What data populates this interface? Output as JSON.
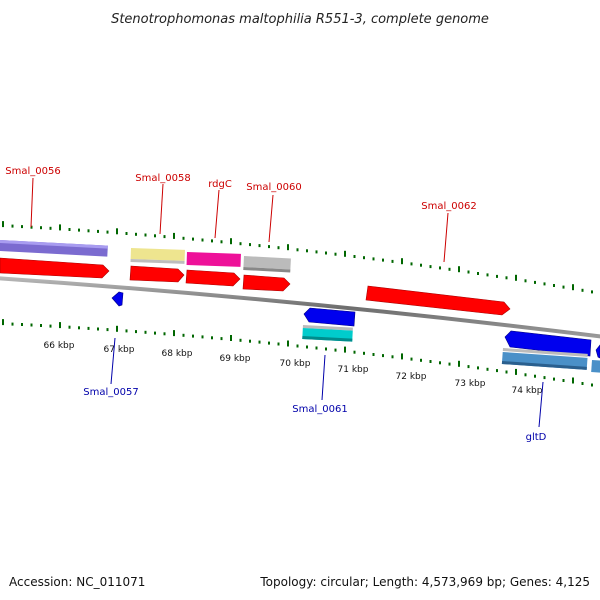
{
  "title": "Stenotrophomonas maltophilia R551-3, complete genome",
  "footer": {
    "accession": "Accession: NC_011071",
    "summary": "Topology: circular; Length: 4,573,969 bp; Genes: 4,125"
  },
  "axis_ticks": [
    "66 kbp",
    "67 kbp",
    "68 kbp",
    "69 kbp",
    "70 kbp",
    "71 kbp",
    "72 kbp",
    "73 kbp",
    "74 kbp"
  ],
  "forward_gene_labels": [
    "Smal_0056",
    "Smal_0058",
    "rdgC",
    "Smal_0060",
    "Smal_0062"
  ],
  "reverse_gene_labels": [
    "Smal_0057",
    "Smal_0061",
    "gltD"
  ],
  "colors": {
    "forward_label": "#cc0000",
    "reverse_label": "#0000aa",
    "forward_cds": "#ff0000",
    "reverse_cds": "#0000ee",
    "backbone": "#808080",
    "gc_marks": "#006600",
    "feature_purple": "#7b6bd0",
    "feature_yellow": "#eee58f",
    "feature_magenta": "#ee1199",
    "feature_gray": "#bbbbbb",
    "feature_cyan": "#00cccc",
    "feature_steelblue": "#4a90c8"
  }
}
